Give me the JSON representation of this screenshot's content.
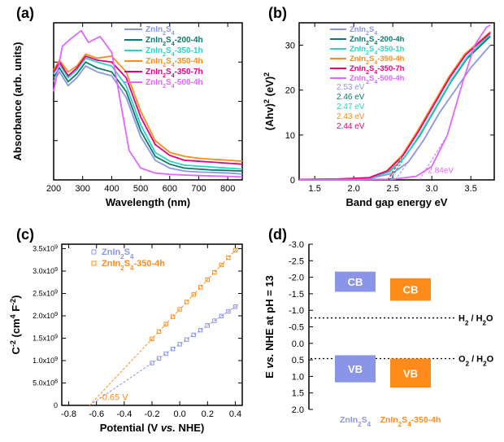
{
  "panelA": {
    "label": "(a)",
    "xlabel": "Wavelength (nm)",
    "ylabel": "Absorbance (arb. units)",
    "xlim": [
      200,
      850
    ],
    "xtick_step": 100,
    "series": [
      {
        "name": "ZnIn2S4",
        "color": "#8b95e8",
        "data": [
          [
            200,
            0.5
          ],
          [
            220,
            0.55
          ],
          [
            250,
            0.48
          ],
          [
            280,
            0.52
          ],
          [
            310,
            0.58
          ],
          [
            350,
            0.55
          ],
          [
            400,
            0.53
          ],
          [
            450,
            0.42
          ],
          [
            500,
            0.22
          ],
          [
            550,
            0.1
          ],
          [
            600,
            0.06
          ],
          [
            650,
            0.045
          ],
          [
            700,
            0.04
          ],
          [
            750,
            0.038
          ],
          [
            800,
            0.035
          ],
          [
            850,
            0.03
          ]
        ]
      },
      {
        "name": "ZnIn2S4-200-4h",
        "color": "#0a7a6b",
        "data": [
          [
            200,
            0.52
          ],
          [
            220,
            0.57
          ],
          [
            250,
            0.5
          ],
          [
            280,
            0.54
          ],
          [
            310,
            0.6
          ],
          [
            350,
            0.57
          ],
          [
            400,
            0.55
          ],
          [
            450,
            0.45
          ],
          [
            500,
            0.25
          ],
          [
            550,
            0.12
          ],
          [
            600,
            0.08
          ],
          [
            650,
            0.06
          ],
          [
            700,
            0.055
          ],
          [
            750,
            0.05
          ],
          [
            800,
            0.048
          ],
          [
            850,
            0.045
          ]
        ]
      },
      {
        "name": "ZnIn2S4-350-1h",
        "color": "#2bd4c6",
        "data": [
          [
            200,
            0.54
          ],
          [
            220,
            0.59
          ],
          [
            250,
            0.52
          ],
          [
            280,
            0.56
          ],
          [
            310,
            0.62
          ],
          [
            350,
            0.6
          ],
          [
            400,
            0.58
          ],
          [
            450,
            0.48
          ],
          [
            500,
            0.28
          ],
          [
            550,
            0.14
          ],
          [
            600,
            0.095
          ],
          [
            650,
            0.075
          ],
          [
            700,
            0.07
          ],
          [
            750,
            0.065
          ],
          [
            800,
            0.06
          ],
          [
            850,
            0.055
          ]
        ]
      },
      {
        "name": "ZnIn2S4-350-4h",
        "color": "#ff8c1a",
        "data": [
          [
            200,
            0.56
          ],
          [
            220,
            0.61
          ],
          [
            250,
            0.55
          ],
          [
            280,
            0.58
          ],
          [
            310,
            0.64
          ],
          [
            350,
            0.62
          ],
          [
            400,
            0.63
          ],
          [
            450,
            0.55
          ],
          [
            500,
            0.35
          ],
          [
            550,
            0.2
          ],
          [
            600,
            0.14
          ],
          [
            650,
            0.12
          ],
          [
            700,
            0.11
          ],
          [
            750,
            0.105
          ],
          [
            800,
            0.1
          ],
          [
            850,
            0.095
          ]
        ]
      },
      {
        "name": "ZnIn2S4-350-7h",
        "color": "#e6007e",
        "data": [
          [
            200,
            0.55
          ],
          [
            220,
            0.6
          ],
          [
            250,
            0.53
          ],
          [
            280,
            0.57
          ],
          [
            310,
            0.63
          ],
          [
            350,
            0.61
          ],
          [
            400,
            0.6
          ],
          [
            450,
            0.52
          ],
          [
            500,
            0.32
          ],
          [
            550,
            0.18
          ],
          [
            600,
            0.125
          ],
          [
            650,
            0.1
          ],
          [
            700,
            0.095
          ],
          [
            750,
            0.09
          ],
          [
            800,
            0.085
          ],
          [
            850,
            0.08
          ]
        ]
      },
      {
        "name": "ZnIn2S4-500-4h",
        "color": "#e066ff",
        "data": [
          [
            200,
            0.45
          ],
          [
            230,
            0.68
          ],
          [
            260,
            0.72
          ],
          [
            295,
            0.76
          ],
          [
            320,
            0.7
          ],
          [
            360,
            0.73
          ],
          [
            400,
            0.65
          ],
          [
            430,
            0.4
          ],
          [
            460,
            0.15
          ],
          [
            500,
            0.06
          ],
          [
            550,
            0.035
          ],
          [
            600,
            0.028
          ],
          [
            650,
            0.025
          ],
          [
            700,
            0.022
          ],
          [
            750,
            0.02
          ],
          [
            800,
            0.018
          ],
          [
            850,
            0.015
          ]
        ]
      }
    ]
  },
  "panelB": {
    "label": "(b)",
    "xlabel": "Band gap energy  eV",
    "ylabel_html": "(Ahv)<tspan baseline-shift='super' font-size='9'>2</tspan>  (eV)<tspan baseline-shift='super' font-size='9'>2</tspan>",
    "xlim": [
      1.3,
      3.8
    ],
    "xticks": [
      1.5,
      2.0,
      2.5,
      3.0,
      3.5
    ],
    "ylim": [
      0,
      35
    ],
    "yticks": [
      0,
      10,
      20,
      30
    ],
    "series": [
      {
        "name": "ZnIn2S4",
        "color": "#8b95e8",
        "bandgap": "2.53 eV",
        "data": [
          [
            1.3,
            0.1
          ],
          [
            1.8,
            0.15
          ],
          [
            2.2,
            0.3
          ],
          [
            2.5,
            1.5
          ],
          [
            2.7,
            4
          ],
          [
            2.9,
            9
          ],
          [
            3.1,
            15
          ],
          [
            3.3,
            20
          ],
          [
            3.5,
            25
          ],
          [
            3.75,
            30
          ]
        ]
      },
      {
        "name": "ZnIn2S4-200-4h",
        "color": "#0a7a6b",
        "bandgap": "2.46 eV",
        "data": [
          [
            1.3,
            0.1
          ],
          [
            1.8,
            0.15
          ],
          [
            2.2,
            0.4
          ],
          [
            2.45,
            1.8
          ],
          [
            2.65,
            5
          ],
          [
            2.85,
            10
          ],
          [
            3.05,
            16
          ],
          [
            3.25,
            22
          ],
          [
            3.45,
            27
          ],
          [
            3.75,
            32
          ]
        ]
      },
      {
        "name": "ZnIn2S4-350-1h",
        "color": "#2bd4c6",
        "bandgap": "2.47 eV",
        "data": [
          [
            1.3,
            0.1
          ],
          [
            1.8,
            0.15
          ],
          [
            2.2,
            0.4
          ],
          [
            2.46,
            1.8
          ],
          [
            2.66,
            5.2
          ],
          [
            2.86,
            10.5
          ],
          [
            3.06,
            16.5
          ],
          [
            3.26,
            22.5
          ],
          [
            3.46,
            27.5
          ],
          [
            3.75,
            32.5
          ]
        ]
      },
      {
        "name": "ZnIn2S4-350-4h",
        "color": "#ff8c1a",
        "bandgap": "2.43 eV",
        "data": [
          [
            1.3,
            0.1
          ],
          [
            1.8,
            0.2
          ],
          [
            2.2,
            0.5
          ],
          [
            2.42,
            2
          ],
          [
            2.62,
            5.5
          ],
          [
            2.82,
            11
          ],
          [
            3.02,
            17
          ],
          [
            3.22,
            23
          ],
          [
            3.42,
            28
          ],
          [
            3.75,
            33
          ]
        ]
      },
      {
        "name": "ZnIn2S4-350-7h",
        "color": "#e6007e",
        "bandgap": "2.44 eV",
        "data": [
          [
            1.3,
            0.1
          ],
          [
            1.8,
            0.2
          ],
          [
            2.2,
            0.5
          ],
          [
            2.43,
            2
          ],
          [
            2.63,
            5.4
          ],
          [
            2.83,
            10.8
          ],
          [
            3.03,
            16.8
          ],
          [
            3.23,
            22.8
          ],
          [
            3.43,
            27.8
          ],
          [
            3.75,
            32.8
          ]
        ]
      },
      {
        "name": "ZnIn2S4-500-4h",
        "color": "#e066ff",
        "bandgap": "2.84eV",
        "data": [
          [
            1.3,
            0.05
          ],
          [
            2.0,
            0.08
          ],
          [
            2.5,
            0.15
          ],
          [
            2.8,
            0.8
          ],
          [
            3.0,
            3
          ],
          [
            3.2,
            10
          ],
          [
            3.4,
            22
          ],
          [
            3.55,
            30
          ],
          [
            3.7,
            34
          ],
          [
            3.75,
            34.5
          ]
        ]
      }
    ],
    "bandgap_label_colors": [
      "#8b95e8",
      "#0a7a6b",
      "#2bd4c6",
      "#ff8c1a",
      "#e6007e"
    ]
  },
  "panelC": {
    "label": "(c)",
    "xlabel": "Potential (V vs. NHE)",
    "ylabel_html": "C<tspan baseline-shift='super' font-size='9'>-2</tspan> (cm<tspan baseline-shift='super' font-size='9'>4</tspan> F<tspan baseline-shift='super' font-size='9'>-2</tspan>)",
    "xlim": [
      -0.85,
      0.45
    ],
    "xticks": [
      -0.8,
      -0.6,
      -0.4,
      -0.2,
      0.0,
      0.2,
      0.4
    ],
    "ylim": [
      0,
      3600000000.0
    ],
    "yticks_labeled": [
      "0",
      "5.0x10^8",
      "1.0x10^9",
      "1.5x10^9",
      "2.0x10^9",
      "2.5x10^9",
      "3.0x10^9",
      "3.5x10^9"
    ],
    "intercept_label": "-0.65 V",
    "series": [
      {
        "name": "ZnIn2S4",
        "color": "#8b95e8",
        "marker": "square-open",
        "intercept": -0.65,
        "slope": 2100000000.0,
        "xdata": [
          -0.2,
          -0.15,
          -0.1,
          -0.05,
          0.0,
          0.05,
          0.1,
          0.15,
          0.2,
          0.25,
          0.3,
          0.35,
          0.4
        ]
      },
      {
        "name": "ZnIn2S4-350-4h",
        "color": "#ff8c1a",
        "marker": "square-open",
        "intercept": -0.65,
        "slope": 3300000000.0,
        "xdata": [
          -0.2,
          -0.15,
          -0.1,
          -0.05,
          0.0,
          0.05,
          0.1,
          0.15,
          0.2,
          0.25,
          0.3,
          0.35,
          0.4
        ]
      }
    ]
  },
  "panelD": {
    "label": "(d)",
    "ylabel": "E vs. NHE at pH = 13",
    "ylim": [
      -3.0,
      2.0
    ],
    "yticks": [
      -3.0,
      -2.5,
      -2.0,
      -1.5,
      -1.0,
      -0.5,
      0.0,
      0.5,
      1.0,
      1.5,
      2.0
    ],
    "redox_lines": [
      {
        "label": "H2 / H2O",
        "E": -0.77
      },
      {
        "label": "O2 / H2O",
        "E": 0.46
      }
    ],
    "materials": [
      {
        "name": "ZnIn2S4",
        "color": "#8b95e8",
        "CB": [
          -2.17,
          -1.56
        ],
        "VB": [
          0.36,
          1.18
        ]
      },
      {
        "name": "ZnIn2S4-350-4h",
        "color": "#ff8c1a",
        "CB": [
          -1.97,
          -1.29
        ],
        "VB": [
          0.46,
          1.34
        ]
      }
    ]
  }
}
